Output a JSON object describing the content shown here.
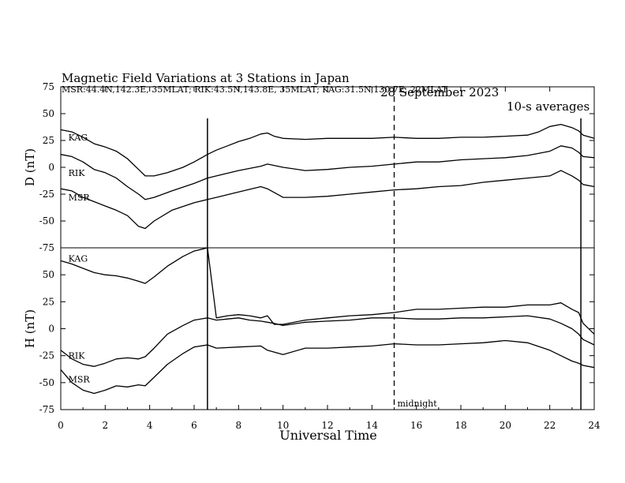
{
  "chart_data": {
    "type": "line",
    "title_parts": [
      "Magnetic Field Variations at 3 Stations in Japan",
      "28 September 2023",
      "10-s averages"
    ],
    "subtitle": "MSR:44.4N,142.3E, 35MLAT;  RIK:43.5N,143.8E, 35MLAT;  KAG:31.5N,130.7E, 22MLAT",
    "xlabel": "Universal Time",
    "xlim": [
      0,
      24
    ],
    "xticks": [
      0,
      2,
      4,
      6,
      8,
      10,
      12,
      14,
      16,
      18,
      20,
      22,
      24
    ],
    "vertical_markers": [
      6.6,
      23.4
    ],
    "midnight_x": 15,
    "midnight_label": "midnight",
    "panels": [
      {
        "ylabel": "D (nT)",
        "ylim": [
          -75,
          75
        ],
        "yticks": [
          75,
          50,
          25,
          0,
          -25,
          -50,
          -75
        ],
        "series": [
          {
            "name": "KAG",
            "label_at": [
              0.2,
              28
            ],
            "x": [
              0,
              0.5,
              1,
              1.5,
              2,
              2.5,
              3,
              3.5,
              3.8,
              4.2,
              4.8,
              5.5,
              6,
              6.6,
              7,
              7.5,
              8,
              8.5,
              9,
              9.3,
              9.6,
              10,
              11,
              12,
              13,
              14,
              15,
              16,
              17,
              18,
              19,
              20,
              21,
              21.5,
              22,
              22.5,
              23,
              23.3,
              23.5,
              24
            ],
            "y": [
              35,
              33,
              28,
              22,
              19,
              15,
              8,
              -2,
              -8,
              -8,
              -5,
              0,
              5,
              12,
              16,
              20,
              24,
              27,
              31,
              32,
              29,
              27,
              26,
              27,
              27,
              27,
              28,
              27,
              27,
              28,
              28,
              29,
              30,
              33,
              38,
              40,
              37,
              34,
              30,
              27
            ]
          },
          {
            "name": "RIK",
            "label_at": [
              0.2,
              -5
            ],
            "x": [
              0,
              0.5,
              1,
              1.5,
              2,
              2.5,
              3,
              3.5,
              3.8,
              4.2,
              5,
              6,
              6.6,
              7,
              8,
              9,
              9.3,
              10,
              11,
              12,
              13,
              14,
              15,
              16,
              17,
              18,
              19,
              20,
              21,
              22,
              22.5,
              23,
              23.3,
              23.5,
              24
            ],
            "y": [
              12,
              10,
              5,
              -2,
              -5,
              -10,
              -18,
              -25,
              -30,
              -28,
              -22,
              -15,
              -10,
              -8,
              -3,
              1,
              3,
              0,
              -3,
              -2,
              0,
              1,
              3,
              5,
              5,
              7,
              8,
              9,
              11,
              15,
              20,
              18,
              14,
              10,
              9
            ]
          },
          {
            "name": "MSR",
            "label_at": [
              0.2,
              -28
            ],
            "x": [
              0,
              0.5,
              1,
              1.5,
              2,
              2.5,
              3,
              3.5,
              3.8,
              4.2,
              5,
              6,
              6.6,
              7,
              8,
              9,
              9.3,
              10,
              11,
              12,
              13,
              14,
              15,
              16,
              17,
              18,
              19,
              20,
              21,
              22,
              22.5,
              23,
              23.3,
              23.5,
              24
            ],
            "y": [
              -20,
              -22,
              -28,
              -32,
              -36,
              -40,
              -45,
              -55,
              -57,
              -50,
              -40,
              -33,
              -30,
              -28,
              -23,
              -18,
              -20,
              -28,
              -28,
              -27,
              -25,
              -23,
              -21,
              -20,
              -18,
              -17,
              -14,
              -12,
              -10,
              -8,
              -3,
              -8,
              -12,
              -16,
              -18
            ]
          }
        ]
      },
      {
        "ylabel": "H (nT)",
        "ylim": [
          -75,
          75
        ],
        "yticks": [
          75,
          50,
          25,
          0,
          -25,
          -50,
          -75
        ],
        "series": [
          {
            "name": "KAG",
            "label_at": [
              0.2,
              65
            ],
            "x": [
              0,
              0.5,
              1,
              1.5,
              2,
              2.5,
              3,
              3.5,
              3.8,
              4.2,
              4.8,
              5.5,
              6,
              6.6,
              7,
              7.5,
              8,
              8.5,
              9,
              9.3,
              9.6,
              10,
              11,
              12,
              13,
              14,
              15,
              16,
              17,
              18,
              19,
              20,
              21,
              22,
              22.5,
              23,
              23.3,
              23.5,
              24
            ],
            "y": [
              63,
              60,
              56,
              52,
              50,
              49,
              47,
              44,
              42,
              48,
              58,
              67,
              72,
              75,
              10,
              12,
              13,
              12,
              10,
              12,
              4,
              4,
              8,
              10,
              12,
              13,
              15,
              18,
              18,
              19,
              20,
              20,
              22,
              22,
              24,
              18,
              15,
              5,
              -5
            ]
          },
          {
            "name": "RIK",
            "label_at": [
              0.2,
              -25
            ],
            "x": [
              0,
              0.5,
              1,
              1.5,
              2,
              2.5,
              3,
              3.5,
              3.8,
              4.2,
              4.8,
              5.5,
              6,
              6.6,
              7,
              7.5,
              8,
              8.5,
              9,
              9.3,
              9.6,
              10,
              11,
              12,
              13,
              14,
              15,
              16,
              17,
              18,
              19,
              20,
              21,
              22,
              22.5,
              23,
              23.3,
              23.5,
              24
            ],
            "y": [
              -20,
              -28,
              -33,
              -35,
              -32,
              -28,
              -27,
              -28,
              -26,
              -18,
              -5,
              3,
              8,
              10,
              8,
              9,
              10,
              8,
              7,
              6,
              5,
              3,
              6,
              7,
              8,
              10,
              10,
              9,
              9,
              10,
              10,
              11,
              12,
              9,
              5,
              0,
              -5,
              -10,
              -15
            ]
          },
          {
            "name": "MSR",
            "label_at": [
              0.2,
              -47
            ],
            "x": [
              0,
              0.5,
              1,
              1.5,
              2,
              2.5,
              3,
              3.5,
              3.8,
              4.2,
              4.8,
              5.5,
              6,
              6.6,
              7,
              8,
              9,
              9.3,
              10,
              11,
              12,
              13,
              14,
              15,
              16,
              17,
              18,
              19,
              20,
              21,
              22,
              22.5,
              23,
              23.3,
              23.5,
              24
            ],
            "y": [
              -38,
              -50,
              -57,
              -60,
              -57,
              -53,
              -54,
              -52,
              -53,
              -45,
              -33,
              -23,
              -17,
              -15,
              -18,
              -17,
              -16,
              -20,
              -24,
              -18,
              -18,
              -17,
              -16,
              -14,
              -15,
              -15,
              -14,
              -13,
              -11,
              -13,
              -20,
              -25,
              -30,
              -32,
              -34,
              -36
            ]
          }
        ]
      }
    ]
  }
}
